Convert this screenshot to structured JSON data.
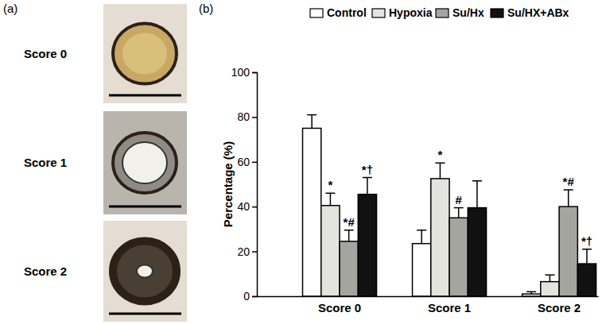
{
  "panel_a": {
    "label": "(a)",
    "scores": [
      "Score 0",
      "Score 1",
      "Score 2"
    ]
  },
  "chart_data": {
    "type": "bar",
    "title": "(b)",
    "categories": [
      "Score 0",
      "Score 1",
      "Score 2"
    ],
    "y_label": "Percentage (%)",
    "ylim": [
      0,
      100
    ],
    "yticks": [
      0,
      20,
      40,
      60,
      80,
      100
    ],
    "legend": "top",
    "series": [
      {
        "name": "Control",
        "color": "#ffffff",
        "values": [
          75,
          23.5,
          1
        ],
        "errors": [
          6,
          6,
          1
        ],
        "annotations": [
          null,
          null,
          null
        ]
      },
      {
        "name": "Hypoxia",
        "color": "#e4e4de",
        "values": [
          40.5,
          52.5,
          6.5
        ],
        "errors": [
          5.5,
          7,
          3
        ],
        "annotations": [
          "*",
          "*",
          null
        ]
      },
      {
        "name": "Su/Hx",
        "color": "#a5a5a0",
        "values": [
          24.5,
          35,
          40
        ],
        "errors": [
          5,
          4.5,
          7.5
        ],
        "annotations": [
          "*#",
          "#",
          "*#"
        ]
      },
      {
        "name": "Su/HX+ABx",
        "color": "#111111",
        "values": [
          45.5,
          39.5,
          14.5
        ],
        "errors": [
          7.5,
          12,
          6.5
        ],
        "annotations": [
          "*†",
          null,
          "*†"
        ]
      }
    ]
  }
}
